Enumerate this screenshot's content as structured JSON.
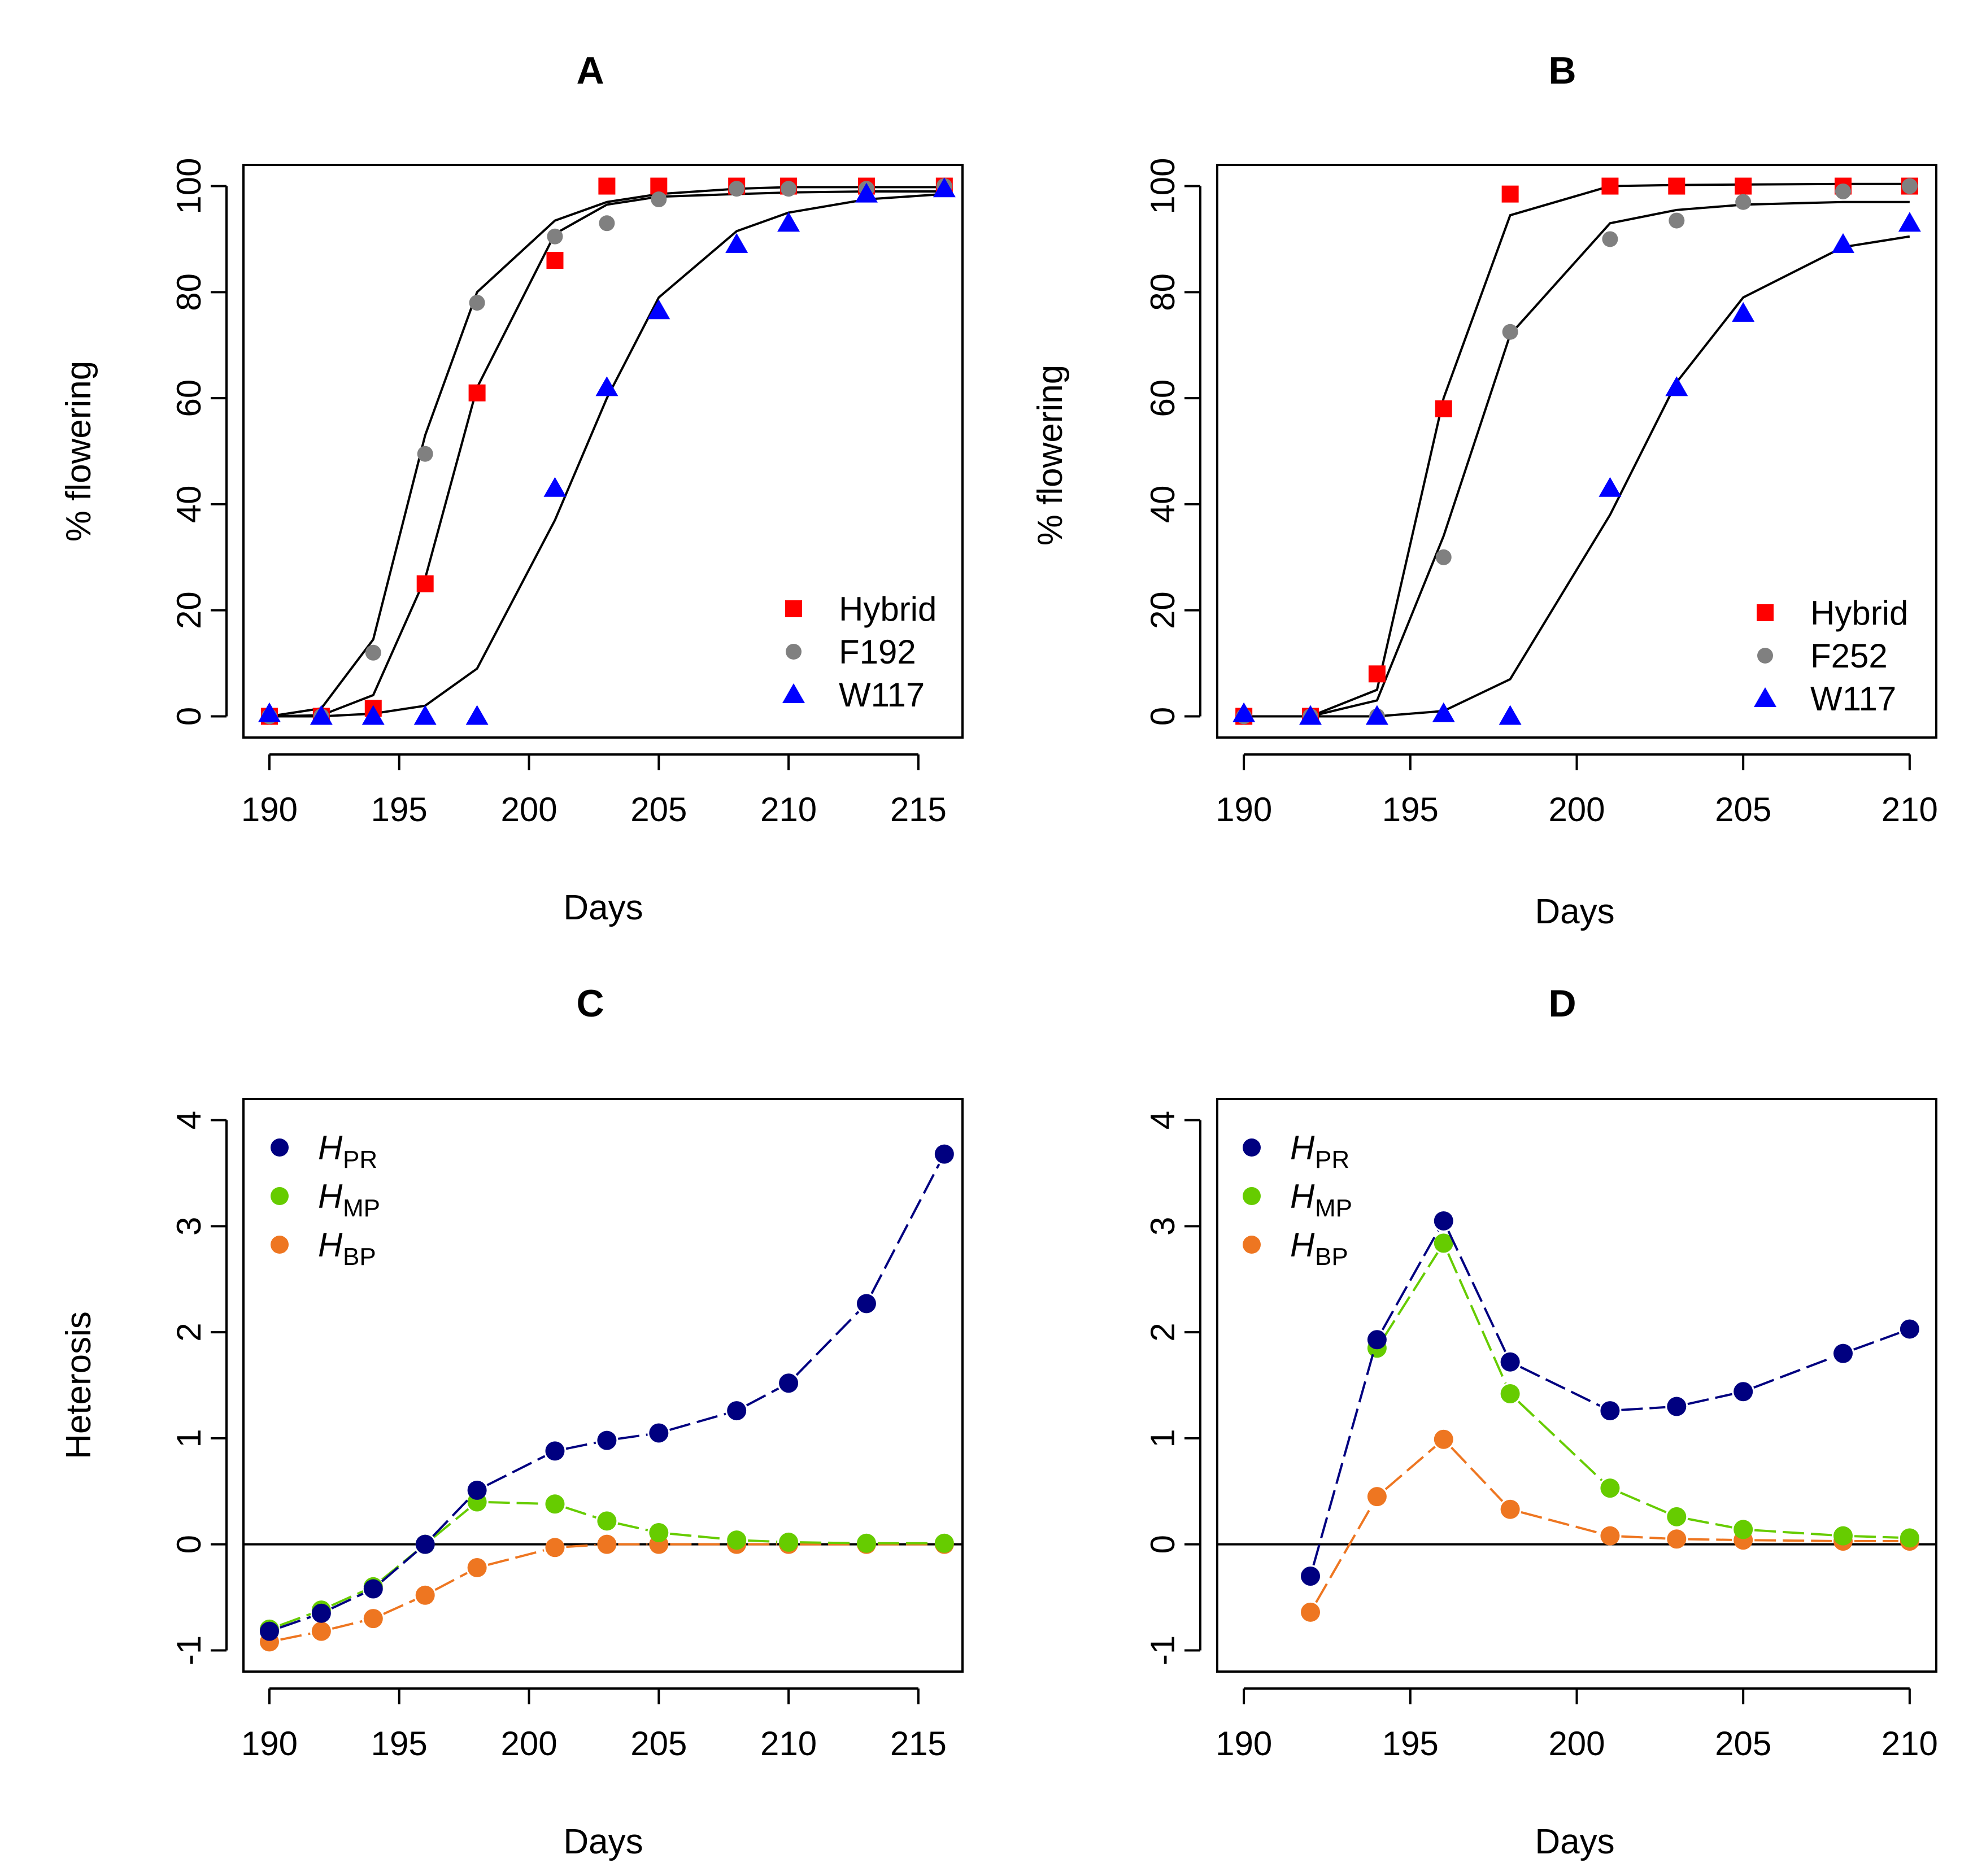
{
  "chart_data": [
    {
      "panel": "A",
      "title": "A",
      "type": "scatter",
      "xlabel": "Days",
      "ylabel": "% flowering",
      "xlim": [
        189,
        216.7
      ],
      "ylim": [
        -4,
        104
      ],
      "xticks": [
        190,
        195,
        200,
        205,
        210,
        215
      ],
      "yticks": [
        0,
        20,
        40,
        60,
        80,
        100
      ],
      "legend_position": "bottom-right",
      "series": [
        {
          "name": "Hybrid",
          "marker": "square",
          "color": "#ff0000",
          "x": [
            190,
            192,
            194,
            196,
            198,
            201,
            203,
            205,
            208,
            210,
            213,
            216
          ],
          "y": [
            0,
            0,
            1.5,
            25,
            61,
            86,
            100,
            100,
            100,
            100,
            100,
            100
          ],
          "fit_x": [
            190,
            192,
            194,
            196,
            198,
            201,
            203,
            205,
            208,
            210,
            213,
            216
          ],
          "fit_y": [
            0,
            0.2,
            4,
            26,
            62,
            91,
            96.5,
            98,
            98.5,
            98.8,
            99,
            99
          ]
        },
        {
          "name": "F192",
          "marker": "circle",
          "color": "#808080",
          "x": [
            190,
            192,
            194,
            196,
            198,
            201,
            203,
            205,
            208,
            210,
            213,
            216
          ],
          "y": [
            0,
            0,
            12,
            49.5,
            78,
            90.5,
            93,
            97.5,
            99.5,
            99.5,
            99.5,
            100
          ],
          "fit_x": [
            190,
            192,
            194,
            196,
            198,
            201,
            203,
            205,
            208,
            210,
            213,
            216
          ],
          "fit_y": [
            0,
            1.5,
            14.5,
            53,
            80,
            93.5,
            97,
            98.5,
            99.5,
            99.8,
            99.8,
            99.8
          ]
        },
        {
          "name": "W117",
          "marker": "triangle",
          "color": "#0000ff",
          "x": [
            190,
            192,
            194,
            196,
            198,
            201,
            203,
            205,
            208,
            210,
            213,
            216
          ],
          "y": [
            0.5,
            0,
            0,
            0,
            0,
            43,
            62,
            76.5,
            89,
            93,
            98.5,
            99.5
          ],
          "fit_x": [
            190,
            192,
            194,
            196,
            198,
            201,
            203,
            205,
            208,
            210,
            213,
            216
          ],
          "fit_y": [
            0,
            0,
            0.5,
            2,
            9,
            37,
            60,
            79,
            91.5,
            95,
            97.5,
            98.5
          ]
        }
      ]
    },
    {
      "panel": "B",
      "title": "B",
      "type": "scatter",
      "xlabel": "Days",
      "ylabel": "% flowering",
      "xlim": [
        189.2,
        210.8
      ],
      "ylim": [
        -4,
        104
      ],
      "xticks": [
        190,
        195,
        200,
        205,
        210
      ],
      "yticks": [
        0,
        20,
        40,
        60,
        80,
        100
      ],
      "legend_position": "bottom-right",
      "series": [
        {
          "name": "Hybrid",
          "marker": "square",
          "color": "#ff0000",
          "x": [
            190,
            192,
            194,
            196,
            198,
            201,
            203,
            205,
            208,
            210
          ],
          "y": [
            0,
            0,
            8,
            58,
            98.5,
            100,
            100,
            100,
            100,
            100
          ],
          "fit_x": [
            190,
            192,
            194,
            196,
            198,
            201,
            203,
            205,
            208,
            210
          ],
          "fit_y": [
            0,
            0,
            5,
            60,
            94.5,
            100,
            100.2,
            100.3,
            100.4,
            100.4
          ]
        },
        {
          "name": "F252",
          "marker": "circle",
          "color": "#808080",
          "x": [
            190,
            192,
            194,
            196,
            198,
            201,
            203,
            205,
            208,
            210
          ],
          "y": [
            0,
            0,
            0,
            30,
            72.5,
            90,
            93.5,
            97,
            99,
            100
          ],
          "fit_x": [
            190,
            192,
            194,
            196,
            198,
            201,
            203,
            205,
            208,
            210
          ],
          "fit_y": [
            0,
            0,
            3,
            34,
            72,
            93,
            95.5,
            96.5,
            97,
            97
          ]
        },
        {
          "name": "W117",
          "marker": "triangle",
          "color": "#0000ff",
          "x": [
            190,
            192,
            194,
            196,
            198,
            201,
            203,
            205,
            208,
            210
          ],
          "y": [
            0.5,
            0,
            0,
            0.5,
            0,
            43,
            62,
            76,
            89,
            93
          ],
          "fit_x": [
            190,
            192,
            194,
            196,
            198,
            201,
            203,
            205,
            208,
            210
          ],
          "fit_y": [
            0,
            0,
            0,
            1,
            7,
            38,
            63,
            79,
            88.5,
            90.5
          ]
        }
      ]
    },
    {
      "panel": "C",
      "title": "C",
      "type": "line",
      "xlabel": "Days",
      "ylabel": "Heterosis",
      "xlim": [
        189,
        216.7
      ],
      "ylim": [
        -1.2,
        4.2
      ],
      "xticks": [
        190,
        195,
        200,
        205,
        210,
        215
      ],
      "yticks": [
        -1,
        0,
        1,
        2,
        3,
        4
      ],
      "reference_line": 0,
      "legend_position": "top-left",
      "series": [
        {
          "name": "H",
          "subscript": "PR",
          "color": "#000080",
          "x": [
            190,
            192,
            194,
            196,
            198,
            201,
            203,
            205,
            208,
            210,
            213,
            216
          ],
          "values": [
            -0.82,
            -0.65,
            -0.42,
            0,
            0.51,
            0.88,
            0.98,
            1.05,
            1.26,
            1.52,
            2.27,
            3.68
          ]
        },
        {
          "name": "H",
          "subscript": "MP",
          "color": "#66cc00",
          "x": [
            190,
            192,
            194,
            196,
            198,
            201,
            203,
            205,
            208,
            210,
            213,
            216
          ],
          "values": [
            -0.8,
            -0.62,
            -0.4,
            0,
            0.4,
            0.38,
            0.22,
            0.11,
            0.04,
            0.02,
            0.01,
            0.01
          ]
        },
        {
          "name": "H",
          "subscript": "BP",
          "color": "#ee7621",
          "x": [
            190,
            192,
            194,
            196,
            198,
            201,
            203,
            205,
            208,
            210,
            213,
            216
          ],
          "values": [
            -0.92,
            -0.82,
            -0.7,
            -0.48,
            -0.22,
            -0.03,
            0,
            0,
            0,
            0,
            0,
            0
          ]
        }
      ]
    },
    {
      "panel": "D",
      "title": "D",
      "type": "line",
      "xlabel": "Days",
      "ylabel": "",
      "xlim": [
        189.2,
        210.8
      ],
      "ylim": [
        -1.2,
        4.2
      ],
      "xticks": [
        190,
        195,
        200,
        205,
        210
      ],
      "yticks": [
        -1,
        0,
        1,
        2,
        3,
        4
      ],
      "reference_line": 0,
      "legend_position": "top-left",
      "series": [
        {
          "name": "H",
          "subscript": "PR",
          "color": "#000080",
          "x": [
            192,
            194,
            196,
            198,
            201,
            203,
            205,
            208,
            210
          ],
          "values": [
            -0.3,
            1.93,
            3.05,
            1.72,
            1.26,
            1.3,
            1.44,
            1.8,
            2.03
          ]
        },
        {
          "name": "H",
          "subscript": "MP",
          "color": "#66cc00",
          "x": [
            194,
            196,
            198,
            201,
            203,
            205,
            208,
            210
          ],
          "values": [
            1.85,
            2.84,
            1.42,
            0.53,
            0.26,
            0.14,
            0.08,
            0.06
          ]
        },
        {
          "name": "H",
          "subscript": "BP",
          "color": "#ee7621",
          "x": [
            192,
            194,
            196,
            198,
            201,
            203,
            205,
            208,
            210
          ],
          "values": [
            -0.64,
            0.45,
            0.99,
            0.33,
            0.08,
            0.05,
            0.04,
            0.03,
            0.03
          ]
        }
      ]
    }
  ]
}
